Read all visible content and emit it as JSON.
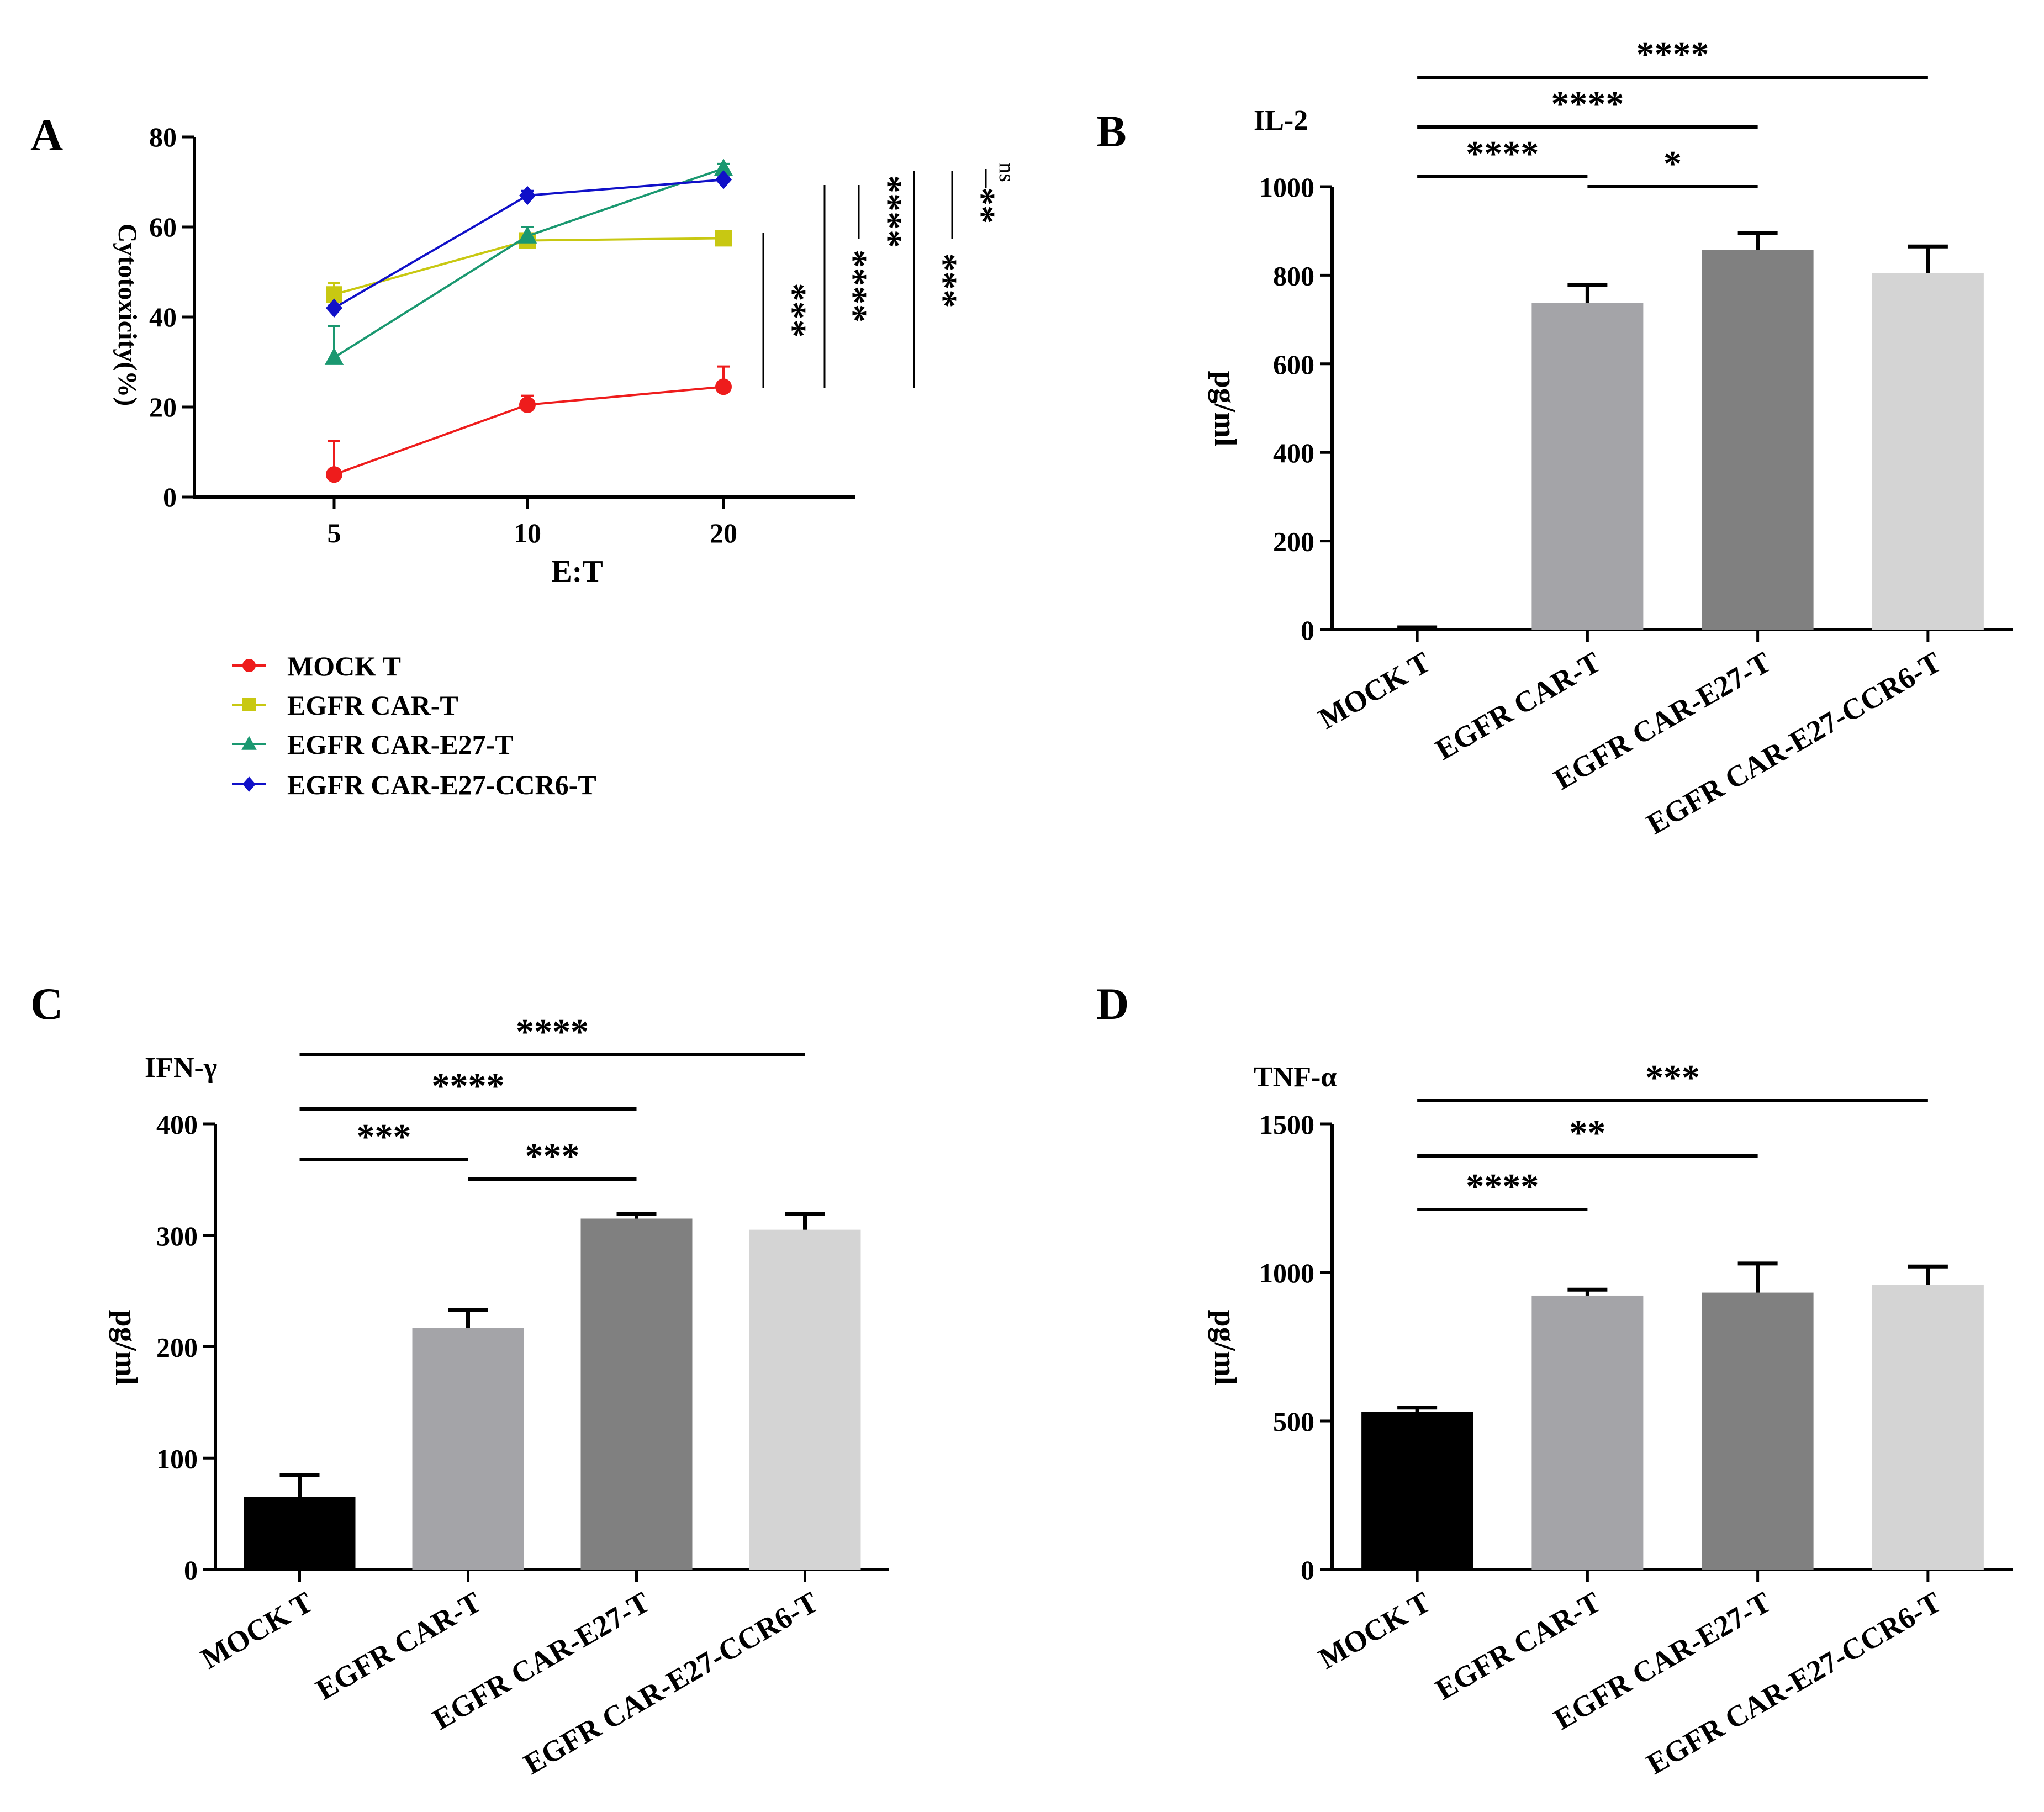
{
  "chart_data": [
    {
      "panel": "A",
      "type": "line",
      "xlabel": "E:T",
      "ylabel": "Cytotoxicity(%)",
      "x": [
        "5",
        "10",
        "20"
      ],
      "ylim": [
        0,
        80
      ],
      "yticks": [
        "0",
        "20",
        "40",
        "60",
        "80"
      ],
      "series": [
        {
          "name": "MOCK T",
          "values": [
            5,
            20.5,
            24.5
          ],
          "err": [
            7.5,
            2,
            4.5
          ],
          "color": "#ee1c1c",
          "marker": "circle"
        },
        {
          "name": "EGFR CAR-T",
          "values": [
            45,
            57,
            57.5
          ],
          "err": [
            2.5,
            1,
            0.5
          ],
          "color": "#c8c812",
          "marker": "square"
        },
        {
          "name": "EGFR CAR-E27-T",
          "values": [
            31,
            58,
            73
          ],
          "err": [
            7,
            2,
            1
          ],
          "color": "#1a9870",
          "marker": "triangle"
        },
        {
          "name": "EGFR CAR-E27-CCR6-T",
          "values": [
            42,
            67,
            70.5
          ],
          "err": [
            0.5,
            1,
            0.5
          ],
          "color": "#1010c8",
          "marker": "diamond"
        }
      ],
      "significance": [
        "***",
        "****",
        "****",
        "***",
        "**",
        "ns"
      ]
    },
    {
      "panel": "B",
      "type": "bar",
      "title": "IL-2",
      "ylabel": "pg/ml",
      "ylim": [
        0,
        1000
      ],
      "yticks": [
        "0",
        "200",
        "400",
        "600",
        "800",
        "1000"
      ],
      "categories": [
        "MOCK T",
        "EGFR CAR-T",
        "EGFR CAR-E27-T",
        "EGFR CAR-E27-CCR6-T"
      ],
      "values": [
        0,
        738,
        857,
        805
      ],
      "err": [
        5,
        40,
        38,
        60
      ],
      "colors": [
        "#000000",
        "#a4a4a8",
        "#808080",
        "#d4d4d4"
      ],
      "significance": [
        "****",
        "****",
        "****",
        "*"
      ]
    },
    {
      "panel": "C",
      "type": "bar",
      "title": "IFN-γ",
      "ylabel": "pg/ml",
      "ylim": [
        0,
        400
      ],
      "yticks": [
        "0",
        "100",
        "200",
        "300",
        "400"
      ],
      "categories": [
        "MOCK T",
        "EGFR CAR-T",
        "EGFR CAR-E27-T",
        "EGFR CAR-E27-CCR6-T"
      ],
      "values": [
        65,
        217,
        315,
        305
      ],
      "err": [
        20,
        16,
        4,
        14
      ],
      "colors": [
        "#000000",
        "#a4a4a8",
        "#808080",
        "#d4d4d4"
      ],
      "significance": [
        "****",
        "****",
        "***",
        "***"
      ]
    },
    {
      "panel": "D",
      "type": "bar",
      "title": "TNF-α",
      "ylabel": "pg/ml",
      "ylim": [
        0,
        1500
      ],
      "yticks": [
        "0",
        "500",
        "1000",
        "1500"
      ],
      "categories": [
        "MOCK T",
        "EGFR CAR-T",
        "EGFR CAR-E27-T",
        "EGFR CAR-E27-CCR6-T"
      ],
      "values": [
        530,
        922,
        932,
        958
      ],
      "err": [
        15,
        20,
        98,
        62
      ],
      "colors": [
        "#000000",
        "#a4a4a8",
        "#808080",
        "#d4d4d4"
      ],
      "significance": [
        "***",
        "**",
        "****"
      ]
    }
  ]
}
